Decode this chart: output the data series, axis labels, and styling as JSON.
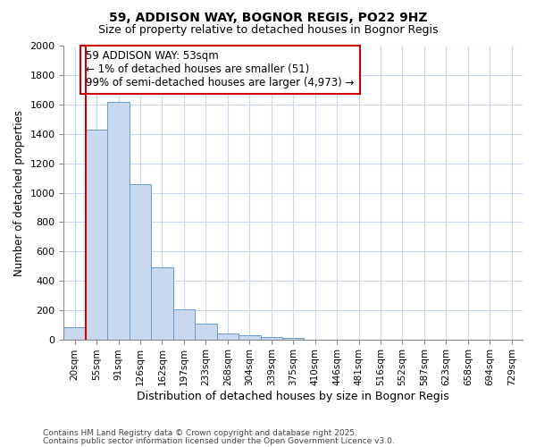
{
  "title1": "59, ADDISON WAY, BOGNOR REGIS, PO22 9HZ",
  "title2": "Size of property relative to detached houses in Bognor Regis",
  "xlabel": "Distribution of detached houses by size in Bognor Regis",
  "ylabel": "Number of detached properties",
  "categories": [
    "20sqm",
    "55sqm",
    "91sqm",
    "126sqm",
    "162sqm",
    "197sqm",
    "233sqm",
    "268sqm",
    "304sqm",
    "339sqm",
    "375sqm",
    "410sqm",
    "446sqm",
    "481sqm",
    "516sqm",
    "552sqm",
    "587sqm",
    "623sqm",
    "658sqm",
    "694sqm",
    "729sqm"
  ],
  "values": [
    80,
    1430,
    1620,
    1060,
    490,
    205,
    110,
    40,
    30,
    15,
    10,
    0,
    0,
    0,
    0,
    0,
    0,
    0,
    0,
    0,
    0
  ],
  "bar_color": "#c8d8ef",
  "bar_edge_color": "#6699cc",
  "red_line_x": 1,
  "annotation_text": "59 ADDISON WAY: 53sqm\n← 1% of detached houses are smaller (51)\n99% of semi-detached houses are larger (4,973) →",
  "annotation_box_color": "#ffffff",
  "annotation_edge_color": "#cc0000",
  "ylim": [
    0,
    2000
  ],
  "yticks": [
    0,
    200,
    400,
    600,
    800,
    1000,
    1200,
    1400,
    1600,
    1800,
    2000
  ],
  "footer1": "Contains HM Land Registry data © Crown copyright and database right 2025.",
  "footer2": "Contains public sector information licensed under the Open Government Licence v3.0.",
  "bg_color": "#ffffff",
  "plot_bg_color": "#ffffff",
  "grid_color": "#c8d8ef"
}
